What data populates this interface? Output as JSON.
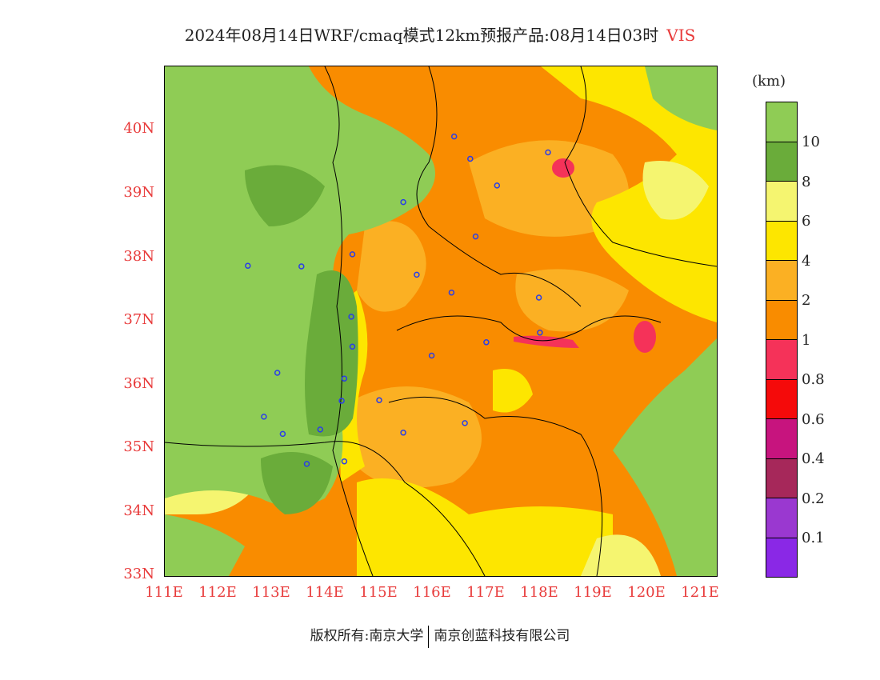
{
  "title": {
    "text": "2024年08月14日WRF/cmaq模式12km预报产品:08月14日03时",
    "variable": "VIS"
  },
  "axes": {
    "lat_labels": [
      "40N",
      "39N",
      "38N",
      "37N",
      "36N",
      "35N",
      "34N",
      "33N"
    ],
    "lat_values": [
      40,
      39,
      38,
      37,
      36,
      35,
      34,
      33
    ],
    "lon_labels": [
      "111E",
      "112E",
      "113E",
      "114E",
      "115E",
      "116E",
      "117E",
      "118E",
      "119E",
      "120E",
      "121E"
    ],
    "lon_values": [
      111,
      112,
      113,
      114,
      115,
      116,
      117,
      118,
      119,
      120,
      121
    ],
    "lat_range": [
      33,
      41
    ],
    "lon_range": [
      111,
      121.3
    ]
  },
  "legend": {
    "unit": "(km)",
    "levels": [
      "10",
      "8",
      "6",
      "4",
      "2",
      "1",
      "0.8",
      "0.6",
      "0.4",
      "0.2",
      "0.1"
    ],
    "colors": [
      "#8fcc55",
      "#6aac3a",
      "#f5f570",
      "#fde600",
      "#fbb023",
      "#f98c00",
      "#f53259",
      "#f50a0a",
      "#c7147e",
      "#a6285a",
      "#9a38d0",
      "#8a28e6"
    ]
  },
  "stations": [
    {
      "lon": 116.4,
      "lat": 39.9
    },
    {
      "lon": 116.7,
      "lat": 39.55
    },
    {
      "lon": 118.15,
      "lat": 39.65
    },
    {
      "lon": 117.2,
      "lat": 39.13
    },
    {
      "lon": 115.45,
      "lat": 38.87
    },
    {
      "lon": 116.8,
      "lat": 38.33
    },
    {
      "lon": 114.5,
      "lat": 38.05
    },
    {
      "lon": 112.55,
      "lat": 37.87
    },
    {
      "lon": 113.55,
      "lat": 37.86
    },
    {
      "lon": 115.7,
      "lat": 37.73
    },
    {
      "lon": 116.35,
      "lat": 37.45
    },
    {
      "lon": 117.98,
      "lat": 37.37
    },
    {
      "lon": 114.48,
      "lat": 37.07
    },
    {
      "lon": 118.0,
      "lat": 36.82
    },
    {
      "lon": 117.0,
      "lat": 36.67
    },
    {
      "lon": 114.5,
      "lat": 36.6
    },
    {
      "lon": 115.98,
      "lat": 36.46
    },
    {
      "lon": 113.1,
      "lat": 36.19
    },
    {
      "lon": 114.35,
      "lat": 36.1
    },
    {
      "lon": 115.0,
      "lat": 35.76
    },
    {
      "lon": 114.3,
      "lat": 35.75
    },
    {
      "lon": 112.85,
      "lat": 35.5
    },
    {
      "lon": 116.6,
      "lat": 35.4
    },
    {
      "lon": 113.9,
      "lat": 35.3
    },
    {
      "lon": 113.2,
      "lat": 35.23
    },
    {
      "lon": 115.45,
      "lat": 35.25
    },
    {
      "lon": 114.35,
      "lat": 34.8
    },
    {
      "lon": 113.65,
      "lat": 34.76
    }
  ],
  "footer": {
    "left": "版权所有:南京大学",
    "right": "南京创蓝科技有限公司"
  }
}
